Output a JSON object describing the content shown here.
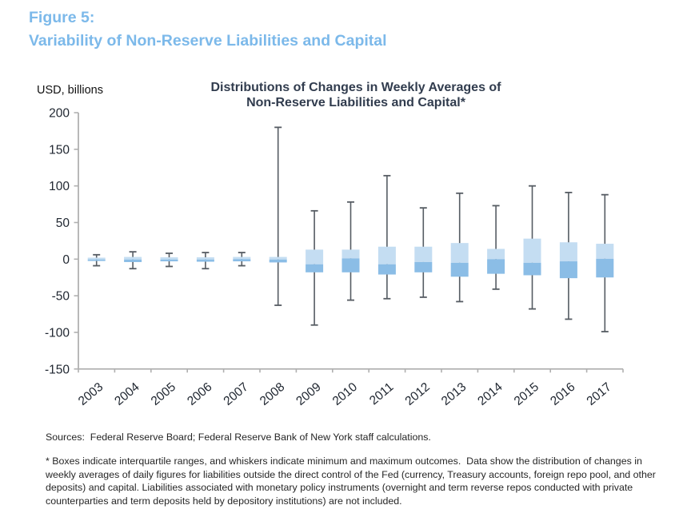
{
  "page": {
    "figure_label": "Figure 5:",
    "figure_title": "Variability of Non-Reserve Liabilities and Capital",
    "sources_line": "Sources:  Federal Reserve Board; Federal Reserve Bank of New York staff calculations.",
    "footnote": "* Boxes indicate interquartile ranges, and whiskers indicate minimum and maximum outcomes.  Data show the distribution of changes in weekly averages of daily figures for liabilities outside the direct control of the Fed (currency, Treasury accounts, foreign repo pool, and other deposits) and capital. Liabilities associated with monetary policy instruments (overnight and term reverse repos conducted with private counterparties and term deposits held by depository institutions) are not included."
  },
  "colors": {
    "figure_heading": "#7cb9ea",
    "chart_title": "#313c4e",
    "box_upper": "#c4ddf2",
    "box_lower": "#8bbde6",
    "whisker": "#565c63",
    "axis_line": "#b0b0b0",
    "tick_label": "#1f2630"
  },
  "chart_data": {
    "type": "boxplot",
    "title_lines": [
      "Distributions of Changes in Weekly Averages of",
      "Non-Reserve Liabilities and Capital*"
    ],
    "ylabel": "USD, billions",
    "ylim": [
      -150,
      200
    ],
    "yticks": [
      200,
      150,
      100,
      50,
      0,
      -50,
      -100,
      -150
    ],
    "grid": false,
    "legend": "none",
    "categories": [
      "2003",
      "2004",
      "2005",
      "2006",
      "2007",
      "2008",
      "2009",
      "2010",
      "2011",
      "2012",
      "2013",
      "2014",
      "2015",
      "2016",
      "2017"
    ],
    "series": [
      {
        "name": "Changes in weekly averages of non-reserve liabilities and capital (USD billions)",
        "boxes": [
          {
            "category": "2003",
            "min": -9,
            "q1": -2.5,
            "median": -0.5,
            "q3": 2,
            "max": 6
          },
          {
            "category": "2004",
            "min": -13,
            "q1": -4,
            "median": -0.5,
            "q3": 3,
            "max": 10
          },
          {
            "category": "2005",
            "min": -10,
            "q1": -3,
            "median": -0.5,
            "q3": 2.5,
            "max": 8
          },
          {
            "category": "2006",
            "min": -13,
            "q1": -3.5,
            "median": -0.5,
            "q3": 2.5,
            "max": 9
          },
          {
            "category": "2007",
            "min": -9,
            "q1": -3,
            "median": 0,
            "q3": 3,
            "max": 9
          },
          {
            "category": "2008",
            "min": -63,
            "q1": -4.5,
            "median": -0.5,
            "q3": 3,
            "max": 180
          },
          {
            "category": "2009",
            "min": -90,
            "q1": -18,
            "median": -7,
            "q3": 13,
            "max": 66
          },
          {
            "category": "2010",
            "min": -56,
            "q1": -18,
            "median": 1,
            "q3": 13,
            "max": 78
          },
          {
            "category": "2011",
            "min": -54,
            "q1": -21,
            "median": -7,
            "q3": 17,
            "max": 114
          },
          {
            "category": "2012",
            "min": -52,
            "q1": -18,
            "median": -4,
            "q3": 17,
            "max": 70
          },
          {
            "category": "2013",
            "min": -58,
            "q1": -24,
            "median": -5,
            "q3": 22,
            "max": 90
          },
          {
            "category": "2014",
            "min": -41,
            "q1": -20,
            "median": 0,
            "q3": 14,
            "max": 73
          },
          {
            "category": "2015",
            "min": -68,
            "q1": -22,
            "median": -5,
            "q3": 28,
            "max": 100
          },
          {
            "category": "2016",
            "min": -82,
            "q1": -26,
            "median": -3,
            "q3": 23,
            "max": 91
          },
          {
            "category": "2017",
            "min": -99,
            "q1": -25,
            "median": 0.5,
            "q3": 21,
            "max": 88
          }
        ]
      }
    ]
  }
}
